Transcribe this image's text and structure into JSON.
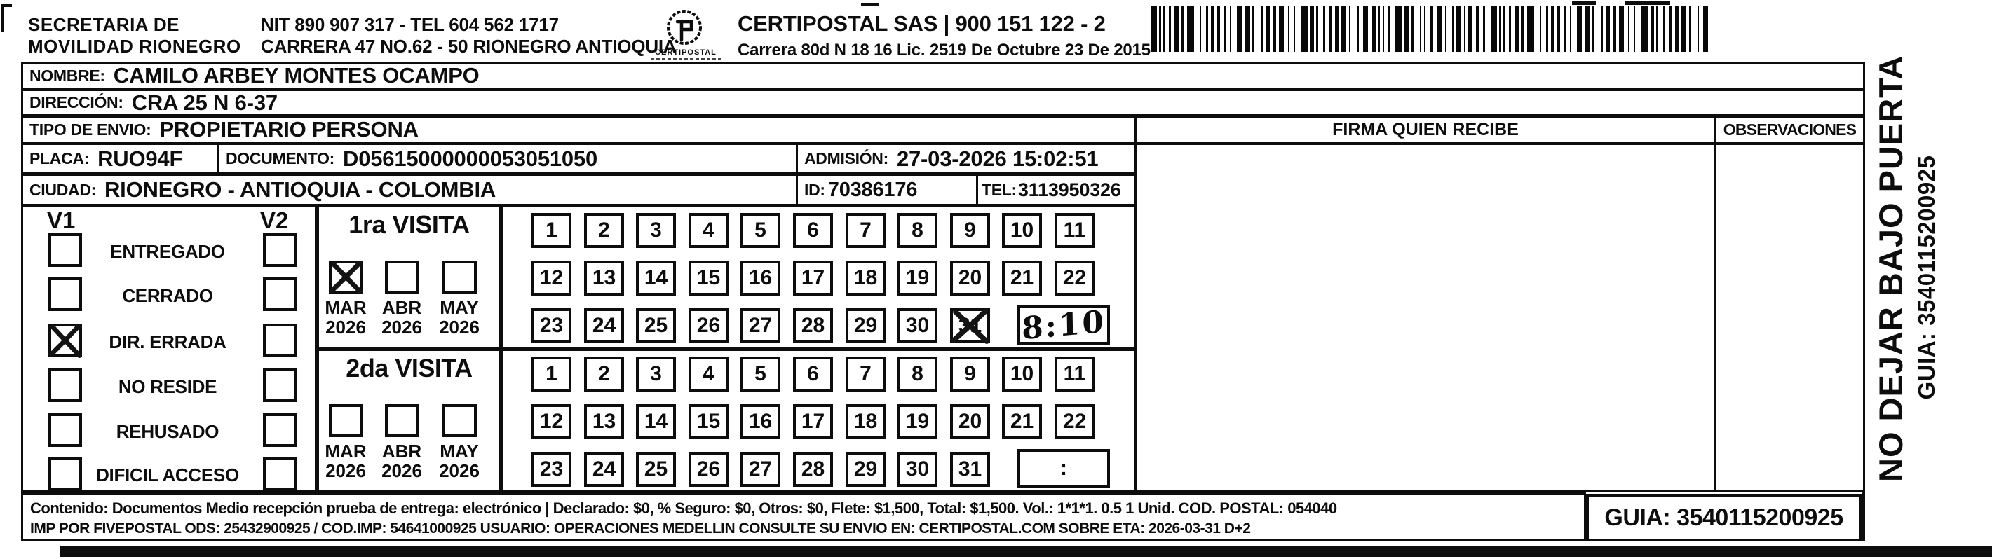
{
  "header": {
    "agency_line1": "SECRETARIA DE",
    "agency_line2": "MOVILIDAD RIONEGRO",
    "agency_nit": "NIT 890 907 317 - TEL 604 562 1717",
    "agency_address": "CARRERA 47 NO.62 - 50 RIONEGRO ANTIOQUIA",
    "logo_caption": "CERTIPOSTAL",
    "carrier_name": "CERTIPOSTAL SAS | 900 151 122 - 2",
    "carrier_address": "Carrera 80d N 18 16  Lic. 2519 De Octubre 23 De 2015"
  },
  "recipient": {
    "nombre_label": "NOMBRE:",
    "nombre": "CAMILO ARBEY MONTES OCAMPO",
    "direccion_label": "DIRECCIÓN:",
    "direccion": "CRA 25 N 6-37",
    "tipo_envio_label": "TIPO DE ENVIO:",
    "tipo_envio": "PROPIETARIO PERSONA",
    "placa_label": "PLACA:",
    "placa": "RUO94F",
    "documento_label": "DOCUMENTO:",
    "documento": "D05615000000053051050",
    "admision_label": "ADMISIÓN:",
    "admision": "27-03-2026 15:02:51",
    "ciudad_label": "CIUDAD:",
    "ciudad": "RIONEGRO - ANTIOQUIA - COLOMBIA",
    "id_label": "ID:",
    "id": "70386176",
    "tel_label": "TEL:",
    "tel": "3113950326"
  },
  "table_headers": {
    "firma": "FIRMA QUIEN RECIBE",
    "observaciones": "OBSERVACIONES"
  },
  "status_panel": {
    "col1_header": "V1",
    "col2_header": "V2",
    "rows": [
      {
        "label": "ENTREGADO",
        "v1_checked": false,
        "v2_checked": false
      },
      {
        "label": "CERRADO",
        "v1_checked": false,
        "v2_checked": false
      },
      {
        "label": "DIR. ERRADA",
        "v1_checked": true,
        "v2_checked": false
      },
      {
        "label": "NO RESIDE",
        "v1_checked": false,
        "v2_checked": false
      },
      {
        "label": "REHUSADO",
        "v1_checked": false,
        "v2_checked": false
      },
      {
        "label": "DIFICIL ACCESO",
        "v1_checked": false,
        "v2_checked": false
      }
    ]
  },
  "visits": [
    {
      "title": "1ra VISITA",
      "months": [
        {
          "month": "MAR",
          "year": "2026",
          "checked": true
        },
        {
          "month": "ABR",
          "year": "2026",
          "checked": false
        },
        {
          "month": "MAY",
          "year": "2026",
          "checked": false
        }
      ],
      "day_rows": [
        [
          "1",
          "2",
          "3",
          "4",
          "5",
          "6",
          "7",
          "8",
          "9",
          "10",
          "11"
        ],
        [
          "12",
          "13",
          "14",
          "15",
          "16",
          "17",
          "18",
          "19",
          "20",
          "21",
          "22"
        ],
        [
          "23",
          "24",
          "25",
          "26",
          "27",
          "28",
          "29",
          "30",
          "31"
        ]
      ],
      "checked_day": "31",
      "time": "8:10",
      "time_handwritten": true
    },
    {
      "title": "2da VISITA",
      "months": [
        {
          "month": "MAR",
          "year": "2026",
          "checked": false
        },
        {
          "month": "ABR",
          "year": "2026",
          "checked": false
        },
        {
          "month": "MAY",
          "year": "2026",
          "checked": false
        }
      ],
      "day_rows": [
        [
          "1",
          "2",
          "3",
          "4",
          "5",
          "6",
          "7",
          "8",
          "9",
          "10",
          "11"
        ],
        [
          "12",
          "13",
          "14",
          "15",
          "16",
          "17",
          "18",
          "19",
          "20",
          "21",
          "22"
        ],
        [
          "23",
          "24",
          "25",
          "26",
          "27",
          "28",
          "29",
          "30",
          "31"
        ]
      ],
      "checked_day": null,
      "time": ":",
      "time_handwritten": false
    }
  ],
  "footer": {
    "line1": "Contenido: Documentos Medio recepción prueba de entrega: electrónico | Declarado: $0, % Seguro: $0, Otros: $0, Flete: $1,500, Total: $1,500. Vol.: 1*1*1. 0.5  1 Unid. COD. POSTAL: 054040",
    "line2": "IMP POR FIVEPOSTAL ODS: 25432900925 / COD.IMP: 54641000925 USUARIO: OPERACIONES MEDELLIN CONSULTE SU ENVIO EN: CERTIPOSTAL.COM SOBRE ETA: 2026-03-31 D+2",
    "guia_box": "GUIA: 3540115200925"
  },
  "side_strip": {
    "warning": "NO DEJAR BAJO PUERTA",
    "guia": "GUIA: 3540115200925"
  }
}
